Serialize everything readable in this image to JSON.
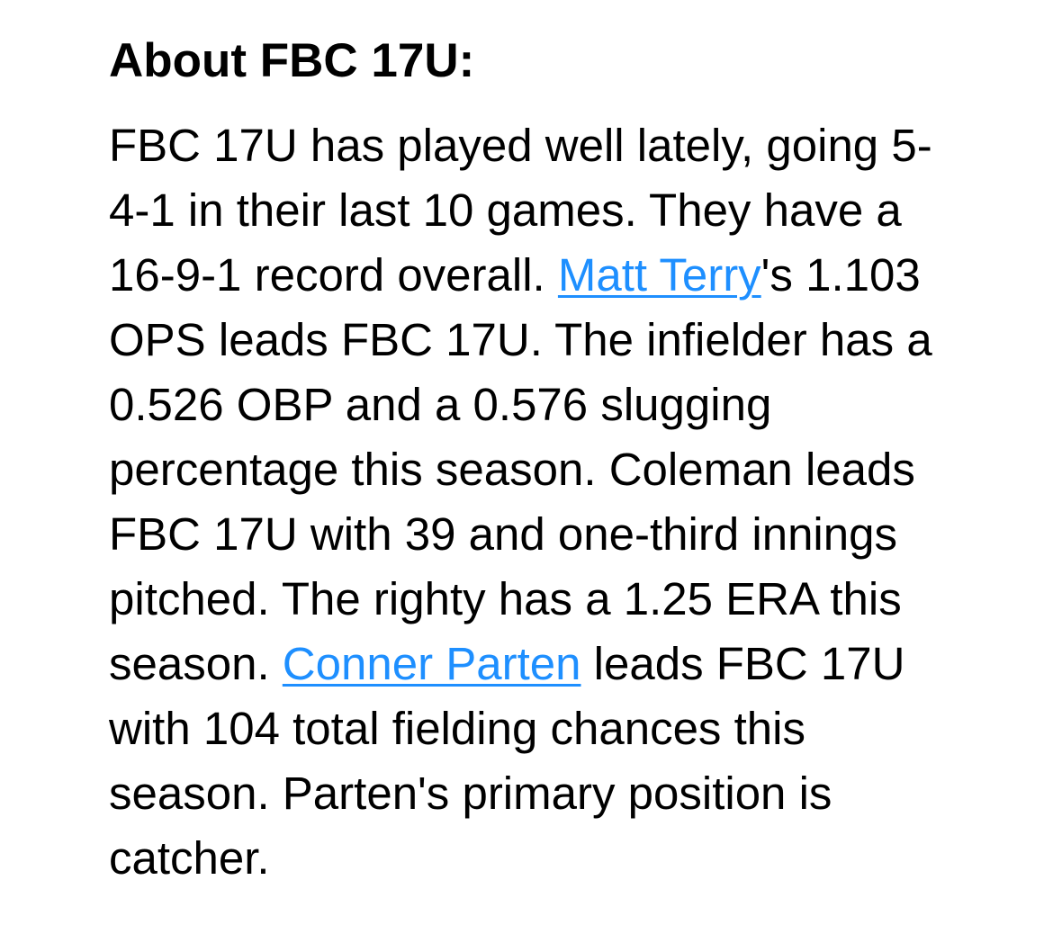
{
  "page": {
    "background_color": "#ffffff",
    "text_color": "#000000",
    "link_color": "#1e8fff"
  },
  "about": {
    "heading": "About FBC 17U:",
    "paragraph_runs": [
      {
        "type": "text",
        "text": "FBC 17U has played well lately, going 5-4-1 in their last 10 games. They have a 16-9-1 record overall. "
      },
      {
        "type": "link",
        "text": "Matt Terry",
        "name": "player-link-matt-terry"
      },
      {
        "type": "text",
        "text": "'s 1.103 OPS leads FBC 17U. The infielder has a 0.526 OBP and a 0.576 slugging percentage this season. Coleman leads FBC 17U with 39 and one-third innings pitched. The righty has a 1.25 ERA this season. "
      },
      {
        "type": "link",
        "text": "Conner Parten",
        "name": "player-link-conner-parten"
      },
      {
        "type": "text",
        "text": " leads FBC 17U with 104 total fielding chances this season. Parten's primary position is catcher."
      }
    ]
  }
}
